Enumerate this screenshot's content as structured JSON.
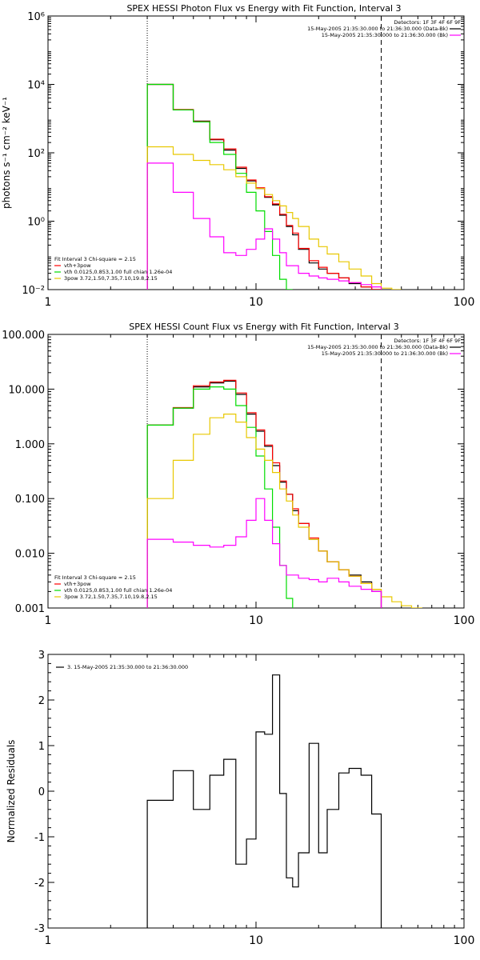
{
  "chart_data": [
    {
      "type": "line",
      "title": "SPEX HESSI Photon Flux vs Energy with Fit Function, Interval 3",
      "xlabel": "",
      "ylabel": "photons s⁻¹ cm⁻² keV⁻¹",
      "xscale": "log",
      "yscale": "log",
      "xlim": [
        1,
        100
      ],
      "ylim": [
        0.01,
        1000000
      ],
      "x_ticks": [
        1,
        10,
        100
      ],
      "x_tick_labels": [
        "1",
        "10",
        "100"
      ],
      "y_ticks": [
        0.01,
        1,
        100,
        10000,
        1000000
      ],
      "y_tick_labels": [
        "10⁻²",
        "10⁰",
        "10²",
        "10⁴",
        "10⁶"
      ],
      "vlines": [
        {
          "x": 3,
          "style": "dotted"
        },
        {
          "x": 40,
          "style": "dashed"
        }
      ],
      "legend_topright": [
        {
          "text": "Detectors: 1F 3F 4F 6F 9F",
          "color": "#000000",
          "line": false
        },
        {
          "text": "15-May-2005 21:35:30.000 to 21:36:30.000 (Data-Bk)",
          "color": "#000000",
          "line": true
        },
        {
          "text": "15-May-2005 21:35:30.000 to 21:36:30.000 (Bk)",
          "color": "#ff00ff",
          "line": true
        }
      ],
      "legend_bottomleft": [
        {
          "text": "Fit Interval 3   Chi-square = 2.15",
          "color": "#000000",
          "line": false
        },
        {
          "text": "vth+3pow",
          "color": "#ff0000",
          "line": true
        },
        {
          "text": "vth 0.0125,0.853,1.00  full chian 1.26e-04",
          "color": "#00dd00",
          "line": true
        },
        {
          "text": "3pow 3.72,1.50,7.35,7.10,19.8,2.15",
          "color": "#e8c800",
          "line": true
        }
      ],
      "series": [
        {
          "color": "#000000",
          "edges": [
            3,
            4,
            5,
            6,
            7,
            8,
            9,
            10,
            11,
            12,
            13,
            14,
            15,
            16,
            18,
            20,
            22,
            25,
            28,
            32,
            36,
            40
          ],
          "values": [
            10000,
            1800,
            850,
            240,
            120,
            35,
            15,
            9,
            5,
            3,
            1.5,
            0.7,
            0.4,
            0.15,
            0.06,
            0.04,
            0.03,
            0.022,
            0.015,
            0.012,
            0.009
          ]
        },
        {
          "color": "#ff0000",
          "edges": [
            3,
            4,
            5,
            6,
            7,
            8,
            9,
            10,
            11,
            12,
            13,
            14,
            15,
            16,
            18,
            20,
            22,
            25,
            28,
            32,
            36,
            40
          ],
          "values": [
            10000,
            1850,
            820,
            250,
            130,
            38,
            16,
            9.5,
            5.2,
            3.2,
            1.6,
            0.75,
            0.45,
            0.16,
            0.07,
            0.045,
            0.03,
            0.022,
            0.016,
            0.012,
            0.009
          ]
        },
        {
          "color": "#00dd00",
          "edges": [
            3,
            4,
            5,
            6,
            7,
            8,
            9,
            10,
            11,
            12,
            13,
            14,
            15
          ],
          "values": [
            10000,
            1800,
            800,
            200,
            90,
            25,
            7,
            2,
            0.5,
            0.1,
            0.02,
            0.01
          ]
        },
        {
          "color": "#e8c800",
          "edges": [
            3,
            4,
            5,
            6,
            7,
            8,
            9,
            10,
            11,
            12,
            13,
            14,
            15,
            16,
            18,
            20,
            22,
            25,
            28,
            32,
            36,
            40,
            45,
            50
          ],
          "values": [
            150,
            90,
            60,
            45,
            32,
            20,
            13,
            9,
            6,
            4,
            2.8,
            1.8,
            1.2,
            0.7,
            0.3,
            0.18,
            0.11,
            0.065,
            0.04,
            0.025,
            0.015,
            0.011,
            0.01
          ]
        },
        {
          "color": "#ff00ff",
          "edges": [
            3,
            4,
            5,
            6,
            7,
            8,
            9,
            10,
            11,
            12,
            13,
            14,
            16,
            18,
            20,
            22,
            25,
            28,
            32,
            36,
            40
          ],
          "values": [
            50,
            7,
            1.2,
            0.35,
            0.12,
            0.1,
            0.15,
            0.3,
            0.6,
            0.3,
            0.12,
            0.05,
            0.03,
            0.025,
            0.022,
            0.02,
            0.018,
            0.016,
            0.014,
            0.012
          ]
        }
      ]
    },
    {
      "type": "line",
      "title": "SPEX HESSI Count Flux vs Energy with Fit Function, Interval 3",
      "xlabel": "",
      "ylabel": "",
      "xscale": "log",
      "yscale": "log",
      "xlim": [
        1,
        100
      ],
      "ylim": [
        0.001,
        100
      ],
      "x_ticks": [
        1,
        10,
        100
      ],
      "x_tick_labels": [
        "1",
        "10",
        "100"
      ],
      "y_ticks": [
        0.001,
        0.01,
        0.1,
        1,
        10,
        100
      ],
      "y_tick_labels": [
        "0.001",
        "0.010",
        "0.100",
        "1.000",
        "10.000",
        "100.000"
      ],
      "vlines": [
        {
          "x": 3,
          "style": "dotted"
        },
        {
          "x": 40,
          "style": "dashed"
        }
      ],
      "legend_topright": [
        {
          "text": "Detectors: 1F 3F 4F 6F 9F",
          "color": "#000000",
          "line": false
        },
        {
          "text": "15-May-2005 21:35:30.000 to 21:36:30.000 (Data-Bk)",
          "color": "#000000",
          "line": true
        },
        {
          "text": "15-May-2005 21:35:30.000 to 21:36:30.000 (Bk)",
          "color": "#ff00ff",
          "line": true
        }
      ],
      "legend_bottomleft": [
        {
          "text": "Fit Interval 3   Chi-square = 2.15",
          "color": "#000000",
          "line": false
        },
        {
          "text": "vth+3pow",
          "color": "#ff0000",
          "line": true
        },
        {
          "text": "vth 0.0125,0.853,1.00  full chian 1.26e-04",
          "color": "#00dd00",
          "line": true
        },
        {
          "text": "3pow 3.72,1.50,7.35,7.10,19.8,2.15",
          "color": "#e8c800",
          "line": true
        }
      ],
      "series": [
        {
          "color": "#000000",
          "edges": [
            3,
            4,
            5,
            6,
            7,
            8,
            9,
            10,
            11,
            12,
            13,
            14,
            15,
            16,
            18,
            20,
            22,
            25,
            28,
            32,
            36,
            40
          ],
          "values": [
            2.2,
            4.5,
            11,
            13,
            14,
            8,
            3.5,
            1.7,
            0.9,
            0.4,
            0.2,
            0.12,
            0.06,
            0.035,
            0.018,
            0.011,
            0.007,
            0.005,
            0.004,
            0.003,
            0.002
          ]
        },
        {
          "color": "#ff0000",
          "edges": [
            3,
            4,
            5,
            6,
            7,
            8,
            9,
            10,
            11,
            12,
            13,
            14,
            15,
            16,
            18,
            20,
            22,
            25,
            28,
            32,
            36,
            40
          ],
          "values": [
            2.2,
            4.6,
            11.5,
            13.5,
            14.5,
            8.5,
            3.7,
            1.8,
            0.95,
            0.45,
            0.21,
            0.12,
            0.065,
            0.035,
            0.019,
            0.011,
            0.007,
            0.005,
            0.0038,
            0.0028,
            0.0022
          ]
        },
        {
          "color": "#00dd00",
          "edges": [
            3,
            4,
            5,
            6,
            7,
            8,
            9,
            10,
            11,
            12,
            13,
            14,
            15
          ],
          "values": [
            2.2,
            4.5,
            10,
            11,
            10,
            5,
            2,
            0.6,
            0.15,
            0.03,
            0.006,
            0.0015
          ]
        },
        {
          "color": "#e8c800",
          "edges": [
            3,
            4,
            5,
            6,
            7,
            8,
            9,
            10,
            11,
            12,
            13,
            14,
            15,
            16,
            18,
            20,
            22,
            25,
            28,
            32,
            36,
            40,
            45,
            50,
            56,
            63
          ],
          "values": [
            0.1,
            0.5,
            1.5,
            3,
            3.5,
            2.5,
            1.3,
            0.8,
            0.5,
            0.3,
            0.15,
            0.09,
            0.05,
            0.03,
            0.018,
            0.011,
            0.007,
            0.005,
            0.0038,
            0.0028,
            0.0022,
            0.0016,
            0.0013,
            0.0011,
            0.001
          ]
        },
        {
          "color": "#ff00ff",
          "edges": [
            3,
            4,
            5,
            6,
            7,
            8,
            9,
            10,
            11,
            12,
            13,
            14,
            16,
            18,
            20,
            22,
            25,
            28,
            32,
            36,
            40
          ],
          "values": [
            0.018,
            0.016,
            0.014,
            0.013,
            0.014,
            0.02,
            0.04,
            0.1,
            0.04,
            0.015,
            0.006,
            0.004,
            0.0035,
            0.0033,
            0.003,
            0.0035,
            0.003,
            0.0025,
            0.0022,
            0.002
          ]
        }
      ]
    },
    {
      "type": "line",
      "title": "",
      "xlabel": "",
      "ylabel": "Normalized Residuals",
      "xscale": "log",
      "yscale": "linear",
      "xlim": [
        1,
        100
      ],
      "ylim": [
        -3,
        3
      ],
      "x_ticks": [
        1,
        10,
        100
      ],
      "x_tick_labels": [
        "1",
        "10",
        "100"
      ],
      "y_ticks": [
        -3,
        -2,
        -1,
        0,
        1,
        2,
        3
      ],
      "y_tick_labels": [
        "-3",
        "-2",
        "-1",
        "0",
        "1",
        "2",
        "3"
      ],
      "vlines": [],
      "legend_topleft": [
        {
          "text": "3. 15-May-2005 21:35:30.000 to 21:36:30.000",
          "color": "#000000",
          "line": true
        }
      ],
      "series": [
        {
          "color": "#000000",
          "edges": [
            3,
            4,
            5,
            6,
            7,
            8,
            9,
            10,
            11,
            12,
            13,
            14,
            15,
            16,
            18,
            20,
            22,
            25,
            28,
            32,
            36,
            40
          ],
          "values": [
            -0.2,
            0.45,
            -0.4,
            0.35,
            0.7,
            -1.6,
            -1.05,
            1.3,
            1.25,
            2.55,
            -0.05,
            -1.9,
            -2.1,
            -1.35,
            1.05,
            -1.35,
            -0.4,
            0.4,
            0.5,
            0.35,
            -0.5
          ]
        }
      ]
    }
  ]
}
